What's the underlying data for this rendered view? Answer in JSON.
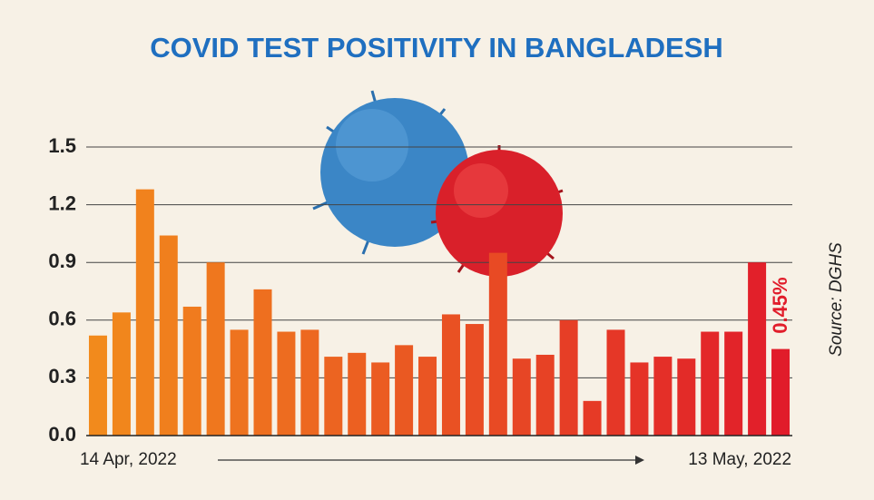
{
  "chart_data": {
    "type": "bar",
    "title": "COVID TEST POSITIVITY IN BANGLADESH",
    "categories": [
      "14 Apr, 2022",
      null,
      null,
      null,
      null,
      null,
      null,
      null,
      null,
      null,
      null,
      null,
      null,
      null,
      null,
      null,
      null,
      null,
      null,
      null,
      null,
      null,
      null,
      null,
      null,
      null,
      null,
      null,
      null,
      "13 May, 2022"
    ],
    "values": [
      0.52,
      0.64,
      1.28,
      1.04,
      0.67,
      0.9,
      0.55,
      0.76,
      0.54,
      0.55,
      0.41,
      0.43,
      0.38,
      0.47,
      0.41,
      0.63,
      0.58,
      0.95,
      0.4,
      0.42,
      0.6,
      0.18,
      0.55,
      0.38,
      0.41,
      0.4,
      0.54,
      0.54,
      0.9,
      0.45
    ],
    "value_labels": [
      null,
      null,
      null,
      null,
      null,
      null,
      null,
      null,
      null,
      null,
      null,
      null,
      null,
      null,
      null,
      null,
      null,
      null,
      null,
      null,
      null,
      null,
      null,
      null,
      null,
      null,
      null,
      null,
      null,
      "0.45%"
    ],
    "colors": [
      "#f28a1c",
      "#e11c2a"
    ],
    "ylim": [
      0,
      1.5
    ],
    "yticks": [
      {
        "value": 0,
        "label": "0.0"
      },
      0.3,
      0.6,
      0.9,
      1.2,
      1.5
    ],
    "grid": true,
    "source": "Source: DGHS"
  }
}
